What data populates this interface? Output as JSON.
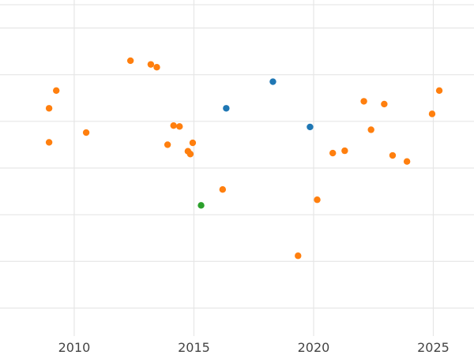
{
  "chart_data": {
    "type": "scatter",
    "title": "",
    "xlabel": "",
    "ylabel": "",
    "grid": true,
    "legend": "none",
    "xlim": [
      2006.9,
      2026.7
    ],
    "ylim": [
      -0.1,
      7.1
    ],
    "x_ticks": [
      {
        "value": 2010,
        "label": "2010"
      },
      {
        "value": 2015,
        "label": "2015"
      },
      {
        "value": 2020,
        "label": "2020"
      },
      {
        "value": 2025,
        "label": "2025"
      }
    ],
    "y_gridlines": [
      0.5,
      1.5,
      2.5,
      3.5,
      4.5,
      5.5,
      6.5,
      7.0
    ],
    "series": [
      {
        "color": "#ff7f0e",
        "points": [
          {
            "x": 2008.95,
            "y": 4.05
          },
          {
            "x": 2008.95,
            "y": 4.78
          },
          {
            "x": 2009.25,
            "y": 5.16
          },
          {
            "x": 2010.5,
            "y": 4.26
          },
          {
            "x": 2012.35,
            "y": 5.8
          },
          {
            "x": 2013.2,
            "y": 5.72
          },
          {
            "x": 2013.45,
            "y": 5.66
          },
          {
            "x": 2013.9,
            "y": 4.0
          },
          {
            "x": 2014.15,
            "y": 4.41
          },
          {
            "x": 2014.4,
            "y": 4.39
          },
          {
            "x": 2014.75,
            "y": 3.86
          },
          {
            "x": 2014.85,
            "y": 3.8
          },
          {
            "x": 2014.95,
            "y": 4.04
          },
          {
            "x": 2016.2,
            "y": 3.04
          },
          {
            "x": 2019.35,
            "y": 1.62
          },
          {
            "x": 2020.15,
            "y": 2.82
          },
          {
            "x": 2020.8,
            "y": 3.82
          },
          {
            "x": 2021.3,
            "y": 3.87
          },
          {
            "x": 2022.1,
            "y": 4.93
          },
          {
            "x": 2022.4,
            "y": 4.32
          },
          {
            "x": 2022.95,
            "y": 4.87
          },
          {
            "x": 2023.3,
            "y": 3.77
          },
          {
            "x": 2023.9,
            "y": 3.64
          },
          {
            "x": 2024.95,
            "y": 4.66
          },
          {
            "x": 2025.25,
            "y": 5.16
          }
        ]
      },
      {
        "color": "#1f77b4",
        "points": [
          {
            "x": 2016.35,
            "y": 4.78
          },
          {
            "x": 2018.3,
            "y": 5.35
          },
          {
            "x": 2019.85,
            "y": 4.38
          }
        ]
      },
      {
        "color": "#2ca02c",
        "points": [
          {
            "x": 2015.3,
            "y": 2.7
          }
        ]
      }
    ]
  }
}
